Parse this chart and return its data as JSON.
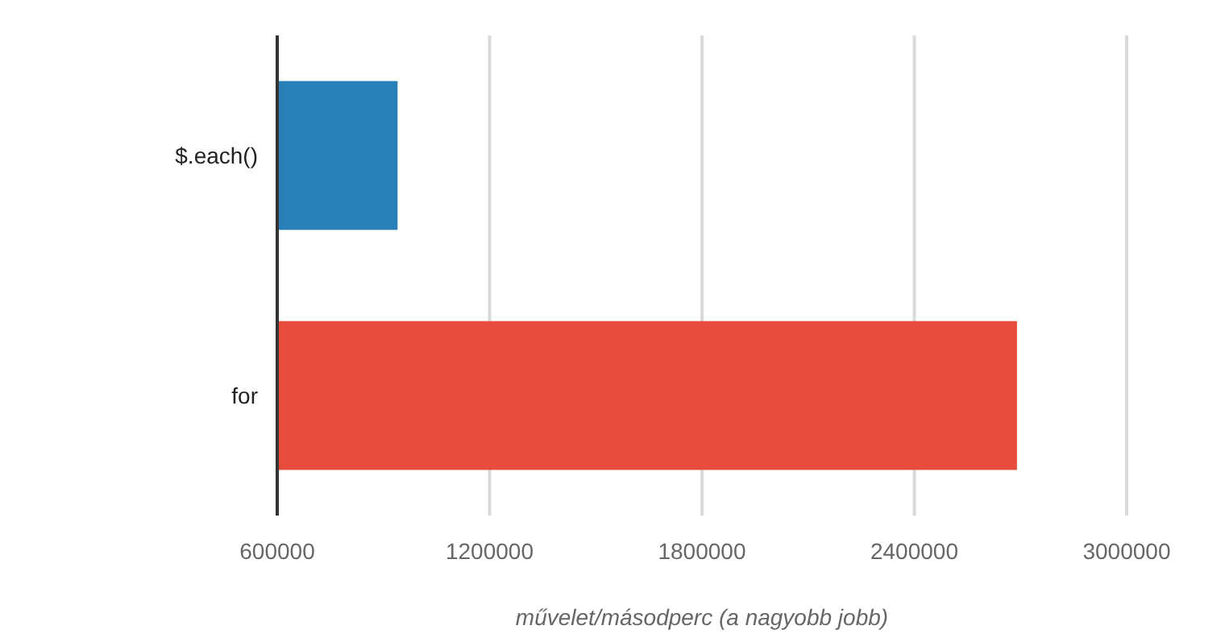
{
  "chart_data": {
    "type": "bar",
    "orientation": "horizontal",
    "xlabel": "művelet/másodperc (a nagyobb jobb)",
    "categories": [
      "$.each()",
      "for"
    ],
    "values": [
      940000,
      2690000
    ],
    "colors": [
      "#2980b9",
      "#e74c3c"
    ],
    "xlim": [
      600000,
      3000000
    ],
    "xticks": [
      600000,
      1200000,
      1800000,
      2400000,
      3000000
    ],
    "grid": "x"
  }
}
